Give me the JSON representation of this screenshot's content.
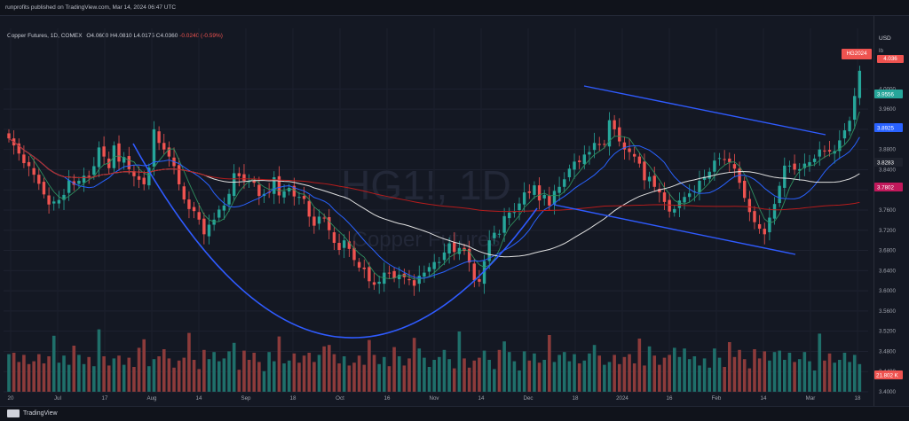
{
  "header": {
    "publisher_line": "runprofits published on TradingView.com, Mar 14, 2024 06:47 UTC"
  },
  "symbol_line": {
    "description": "Copper Futures, 1D, COMEX",
    "open": "O4.0600",
    "high": "H4.0810",
    "low": "L4.0175",
    "close": "C4.0360",
    "change": "-0.0240 (-0.59%)"
  },
  "axis": {
    "currency": "USD",
    "unit": "lb"
  },
  "watermark": {
    "symbol": "HG1!, 1D",
    "name": "Copper Futures"
  },
  "price_labels": {
    "symbol_tag": "HG2024",
    "last_price": "4.036",
    "tags": [
      {
        "value": "3.9556",
        "color": "#26a69a"
      },
      {
        "value": "3.8925",
        "color": "#2962ff"
      },
      {
        "value": "3.8283",
        "color": "#1e222d"
      },
      {
        "value": "3.7802",
        "color": "#c2185b"
      }
    ],
    "volume_tag": "21.802 K"
  },
  "footer": {
    "brand": "TradingView"
  },
  "colors": {
    "up": "#26a69a",
    "down": "#ef5350",
    "volume_up": "#1f6f6a",
    "volume_down": "#8c3b3b",
    "ma_short": "#2962ff",
    "ma_mid": "#e0e0e0",
    "ma_long": "#b71c1c",
    "trendline": "#2f5bff"
  },
  "chart_data": {
    "type": "candlestick",
    "ylim": [
      3.4,
      4.12
    ],
    "y_ticks": [
      "4.0000",
      "3.9600",
      "3.9200",
      "3.8800",
      "3.8400",
      "3.8000",
      "3.7600",
      "3.7200",
      "3.6800",
      "3.6400",
      "3.6000",
      "3.5600",
      "3.5200",
      "3.4800",
      "3.4400",
      "3.4000"
    ],
    "x_tick_labels": [
      "20",
      "Jul",
      "17",
      "Aug",
      "14",
      "Sep",
      "18",
      "Oct",
      "16",
      "Nov",
      "14",
      "Dec",
      "18",
      "2024",
      "16",
      "Feb",
      "14",
      "Mar",
      "18"
    ],
    "closes": [
      3.902,
      3.888,
      3.872,
      3.853,
      3.847,
      3.83,
      3.812,
      3.791,
      3.771,
      3.777,
      3.78,
      3.79,
      3.819,
      3.81,
      3.818,
      3.828,
      3.826,
      3.847,
      3.884,
      3.866,
      3.843,
      3.888,
      3.856,
      3.865,
      3.841,
      3.827,
      3.82,
      3.811,
      3.844,
      3.92,
      3.893,
      3.88,
      3.866,
      3.847,
      3.811,
      3.781,
      3.762,
      3.758,
      3.741,
      3.712,
      3.731,
      3.741,
      3.761,
      3.769,
      3.792,
      3.833,
      3.827,
      3.818,
      3.817,
      3.814,
      3.788,
      3.792,
      3.794,
      3.825,
      3.789,
      3.797,
      3.804,
      3.787,
      3.786,
      3.782,
      3.747,
      3.729,
      3.747,
      3.744,
      3.72,
      3.695,
      3.681,
      3.7,
      3.683,
      3.661,
      3.646,
      3.643,
      3.619,
      3.612,
      3.618,
      3.636,
      3.635,
      3.625,
      3.632,
      3.627,
      3.621,
      3.61,
      3.63,
      3.636,
      3.647,
      3.657,
      3.657,
      3.676,
      3.694,
      3.677,
      3.685,
      3.679,
      3.656,
      3.621,
      3.618,
      3.659,
      3.7,
      3.715,
      3.713,
      3.748,
      3.755,
      3.756,
      3.773,
      3.795,
      3.794,
      3.809,
      3.779,
      3.79,
      3.769,
      3.798,
      3.806,
      3.821,
      3.842,
      3.856,
      3.855,
      3.87,
      3.875,
      3.893,
      3.889,
      3.89,
      3.938,
      3.92,
      3.896,
      3.88,
      3.875,
      3.866,
      3.852,
      3.819,
      3.826,
      3.806,
      3.795,
      3.776,
      3.757,
      3.762,
      3.779,
      3.786,
      3.793,
      3.797,
      3.818,
      3.826,
      3.836,
      3.858,
      3.863,
      3.86,
      3.855,
      3.842,
      3.814,
      3.784,
      3.756,
      3.736,
      3.723,
      3.712,
      3.745,
      3.772,
      3.808,
      3.848,
      3.848,
      3.84,
      3.841,
      3.852,
      3.855,
      3.862,
      3.88,
      3.877,
      3.876,
      3.877,
      3.898,
      3.918,
      3.937,
      3.986,
      4.036
    ],
    "volume": {
      "ylim": [
        0,
        140
      ],
      "note": "volume bars in thousands"
    }
  }
}
